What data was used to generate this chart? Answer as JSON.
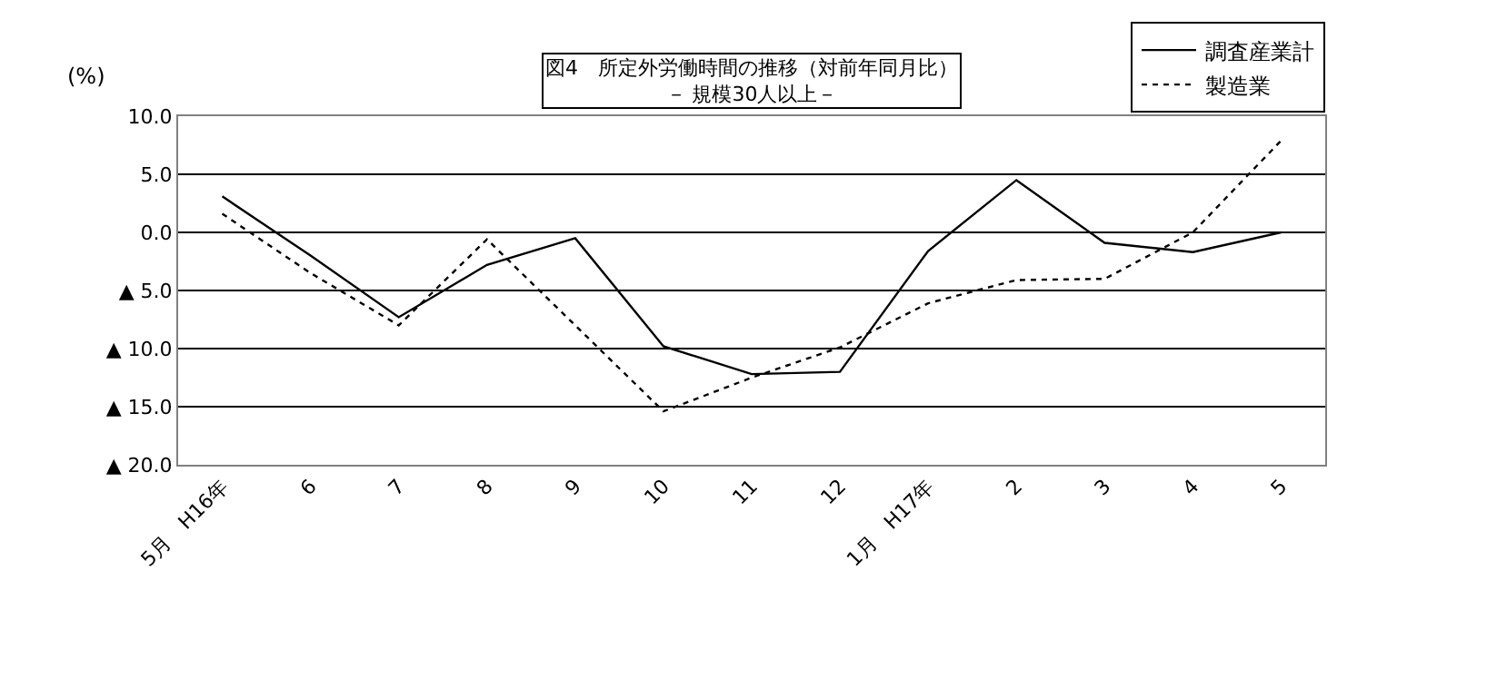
{
  "chart_data": {
    "type": "line",
    "title": "図4　所定外労働時間の推移（対前年同月比）",
    "subtitle": "－ 規模30人以上－",
    "ylabel": "(%)",
    "categories": [
      "5月　H16年",
      "6",
      "7",
      "8",
      "9",
      "10",
      "11",
      "12",
      "1月　H17年",
      "2",
      "3",
      "4",
      "5"
    ],
    "series": [
      {
        "name": "調査産業計",
        "color": "#000000",
        "line_style": "solid",
        "values": [
          3.1,
          -2.0,
          -7.3,
          -2.8,
          -0.5,
          -9.8,
          -12.2,
          -12.0,
          -1.6,
          4.5,
          -0.9,
          -1.7,
          0.0
        ]
      },
      {
        "name": "製造業",
        "color": "#000000",
        "line_style": "dotted",
        "values": [
          1.6,
          -3.5,
          -8.0,
          -0.6,
          -8.0,
          -15.4,
          -12.5,
          -9.9,
          -6.1,
          -4.1,
          -4.0,
          0.0,
          7.9
        ]
      }
    ],
    "ylim": [
      -20,
      10
    ],
    "yticks": [
      {
        "value": 10,
        "label": "10.0"
      },
      {
        "value": 5,
        "label": "5.0"
      },
      {
        "value": 0,
        "label": "0.0"
      },
      {
        "value": -5,
        "label": "▲ 5.0"
      },
      {
        "value": -10,
        "label": "▲ 10.0"
      },
      {
        "value": -15,
        "label": "▲ 15.0"
      },
      {
        "value": -20,
        "label": "▲ 20.0"
      }
    ],
    "grid": "y",
    "legend": "top right",
    "marker": "none"
  }
}
